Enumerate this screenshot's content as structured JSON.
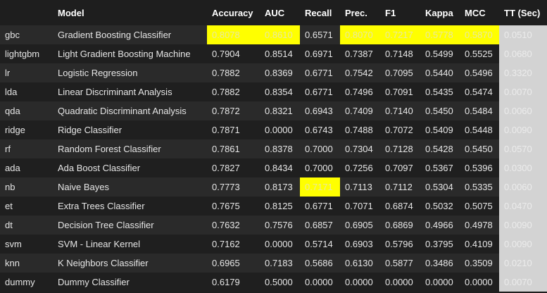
{
  "columns": [
    "Model",
    "Accuracy",
    "AUC",
    "Recall",
    "Prec.",
    "F1",
    "Kappa",
    "MCC",
    "TT (Sec)"
  ],
  "rows": [
    {
      "id": "gbc",
      "model": "Gradient Boosting Classifier",
      "acc": "0.8078",
      "auc": "0.8610",
      "recall": "0.6571",
      "prec": "0.8070",
      "f1": "0.7217",
      "kappa": "0.5778",
      "mcc": "0.5870",
      "tt": "0.0510"
    },
    {
      "id": "lightgbm",
      "model": "Light Gradient Boosting Machine",
      "acc": "0.7904",
      "auc": "0.8514",
      "recall": "0.6971",
      "prec": "0.7387",
      "f1": "0.7148",
      "kappa": "0.5499",
      "mcc": "0.5525",
      "tt": "0.0680"
    },
    {
      "id": "lr",
      "model": "Logistic Regression",
      "acc": "0.7882",
      "auc": "0.8369",
      "recall": "0.6771",
      "prec": "0.7542",
      "f1": "0.7095",
      "kappa": "0.5440",
      "mcc": "0.5496",
      "tt": "0.3320"
    },
    {
      "id": "lda",
      "model": "Linear Discriminant Analysis",
      "acc": "0.7882",
      "auc": "0.8354",
      "recall": "0.6771",
      "prec": "0.7496",
      "f1": "0.7091",
      "kappa": "0.5435",
      "mcc": "0.5474",
      "tt": "0.0070"
    },
    {
      "id": "qda",
      "model": "Quadratic Discriminant Analysis",
      "acc": "0.7872",
      "auc": "0.8321",
      "recall": "0.6943",
      "prec": "0.7409",
      "f1": "0.7140",
      "kappa": "0.5450",
      "mcc": "0.5484",
      "tt": "0.0060"
    },
    {
      "id": "ridge",
      "model": "Ridge Classifier",
      "acc": "0.7871",
      "auc": "0.0000",
      "recall": "0.6743",
      "prec": "0.7488",
      "f1": "0.7072",
      "kappa": "0.5409",
      "mcc": "0.5448",
      "tt": "0.0090"
    },
    {
      "id": "rf",
      "model": "Random Forest Classifier",
      "acc": "0.7861",
      "auc": "0.8378",
      "recall": "0.7000",
      "prec": "0.7304",
      "f1": "0.7128",
      "kappa": "0.5428",
      "mcc": "0.5450",
      "tt": "0.0570"
    },
    {
      "id": "ada",
      "model": "Ada Boost Classifier",
      "acc": "0.7827",
      "auc": "0.8434",
      "recall": "0.7000",
      "prec": "0.7256",
      "f1": "0.7097",
      "kappa": "0.5367",
      "mcc": "0.5396",
      "tt": "0.0300"
    },
    {
      "id": "nb",
      "model": "Naive Bayes",
      "acc": "0.7773",
      "auc": "0.8173",
      "recall": "0.7171",
      "prec": "0.7113",
      "f1": "0.7112",
      "kappa": "0.5304",
      "mcc": "0.5335",
      "tt": "0.0060"
    },
    {
      "id": "et",
      "model": "Extra Trees Classifier",
      "acc": "0.7675",
      "auc": "0.8125",
      "recall": "0.6771",
      "prec": "0.7071",
      "f1": "0.6874",
      "kappa": "0.5032",
      "mcc": "0.5075",
      "tt": "0.0470"
    },
    {
      "id": "dt",
      "model": "Decision Tree Classifier",
      "acc": "0.7632",
      "auc": "0.7576",
      "recall": "0.6857",
      "prec": "0.6905",
      "f1": "0.6869",
      "kappa": "0.4966",
      "mcc": "0.4978",
      "tt": "0.0090"
    },
    {
      "id": "svm",
      "model": "SVM - Linear Kernel",
      "acc": "0.7162",
      "auc": "0.0000",
      "recall": "0.5714",
      "prec": "0.6903",
      "f1": "0.5796",
      "kappa": "0.3795",
      "mcc": "0.4109",
      "tt": "0.0090"
    },
    {
      "id": "knn",
      "model": "K Neighbors Classifier",
      "acc": "0.6965",
      "auc": "0.7183",
      "recall": "0.5686",
      "prec": "0.6130",
      "f1": "0.5877",
      "kappa": "0.3486",
      "mcc": "0.3509",
      "tt": "0.0210"
    },
    {
      "id": "dummy",
      "model": "Dummy Classifier",
      "acc": "0.6179",
      "auc": "0.5000",
      "recall": "0.0000",
      "prec": "0.0000",
      "f1": "0.0000",
      "kappa": "0.0000",
      "mcc": "0.0000",
      "tt": "0.0070"
    }
  ],
  "highlights": [
    {
      "row": 0,
      "cols": [
        "acc",
        "auc",
        "prec",
        "f1",
        "kappa",
        "mcc"
      ]
    },
    {
      "row": 8,
      "cols": [
        "recall"
      ]
    }
  ],
  "colors": {
    "highlight": "#ffff00",
    "tt_background": "#d3d3d3",
    "background": "#1e1e1e"
  }
}
